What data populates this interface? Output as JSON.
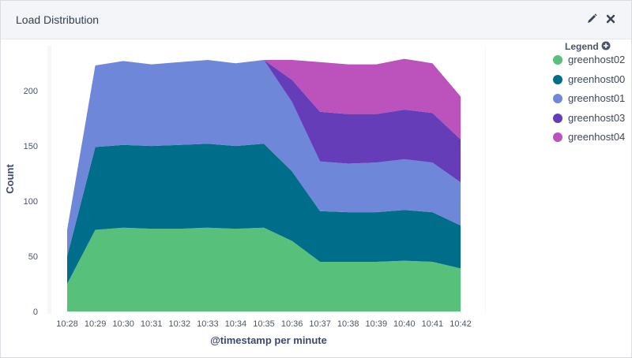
{
  "panel": {
    "title": "Load Distribution",
    "edit_icon": "pencil-icon",
    "close_icon": "close-icon"
  },
  "legend": {
    "title": "Legend",
    "toggle_icon": "plus-circle-icon"
  },
  "colors": {
    "greenhost02": "#57c17b",
    "greenhost00": "#006e8a",
    "greenhost01": "#6f87d8",
    "greenhost03": "#663db8",
    "greenhost04": "#bc52bc"
  },
  "chart_data": {
    "type": "area",
    "stacked": true,
    "xlabel": "@timestamp per minute",
    "ylabel": "Count",
    "ylim": [
      0,
      228
    ],
    "yticks": [
      0,
      50,
      100,
      150,
      200
    ],
    "x": [
      "10:28",
      "10:29",
      "10:30",
      "10:31",
      "10:32",
      "10:33",
      "10:34",
      "10:35",
      "10:36",
      "10:37",
      "10:38",
      "10:39",
      "10:40",
      "10:41",
      "10:42"
    ],
    "legend_position": "right",
    "grid": false,
    "series": [
      {
        "name": "greenhost02",
        "values": [
          25,
          74,
          76,
          75,
          75,
          76,
          75,
          76,
          64,
          45,
          45,
          45,
          46,
          45,
          39
        ]
      },
      {
        "name": "greenhost00",
        "values": [
          25,
          75,
          75,
          75,
          76,
          76,
          75,
          76,
          63,
          46,
          45,
          45,
          46,
          45,
          39
        ]
      },
      {
        "name": "greenhost01",
        "values": [
          24,
          74,
          76,
          74,
          75,
          76,
          75,
          76,
          63,
          45,
          44,
          45,
          46,
          45,
          39
        ]
      },
      {
        "name": "greenhost03",
        "values": [
          0,
          0,
          0,
          0,
          0,
          0,
          0,
          0,
          20,
          45,
          45,
          44,
          45,
          45,
          39
        ]
      },
      {
        "name": "greenhost04",
        "values": [
          0,
          0,
          0,
          0,
          0,
          0,
          0,
          0,
          18,
          45,
          45,
          45,
          46,
          45,
          39
        ]
      }
    ]
  }
}
